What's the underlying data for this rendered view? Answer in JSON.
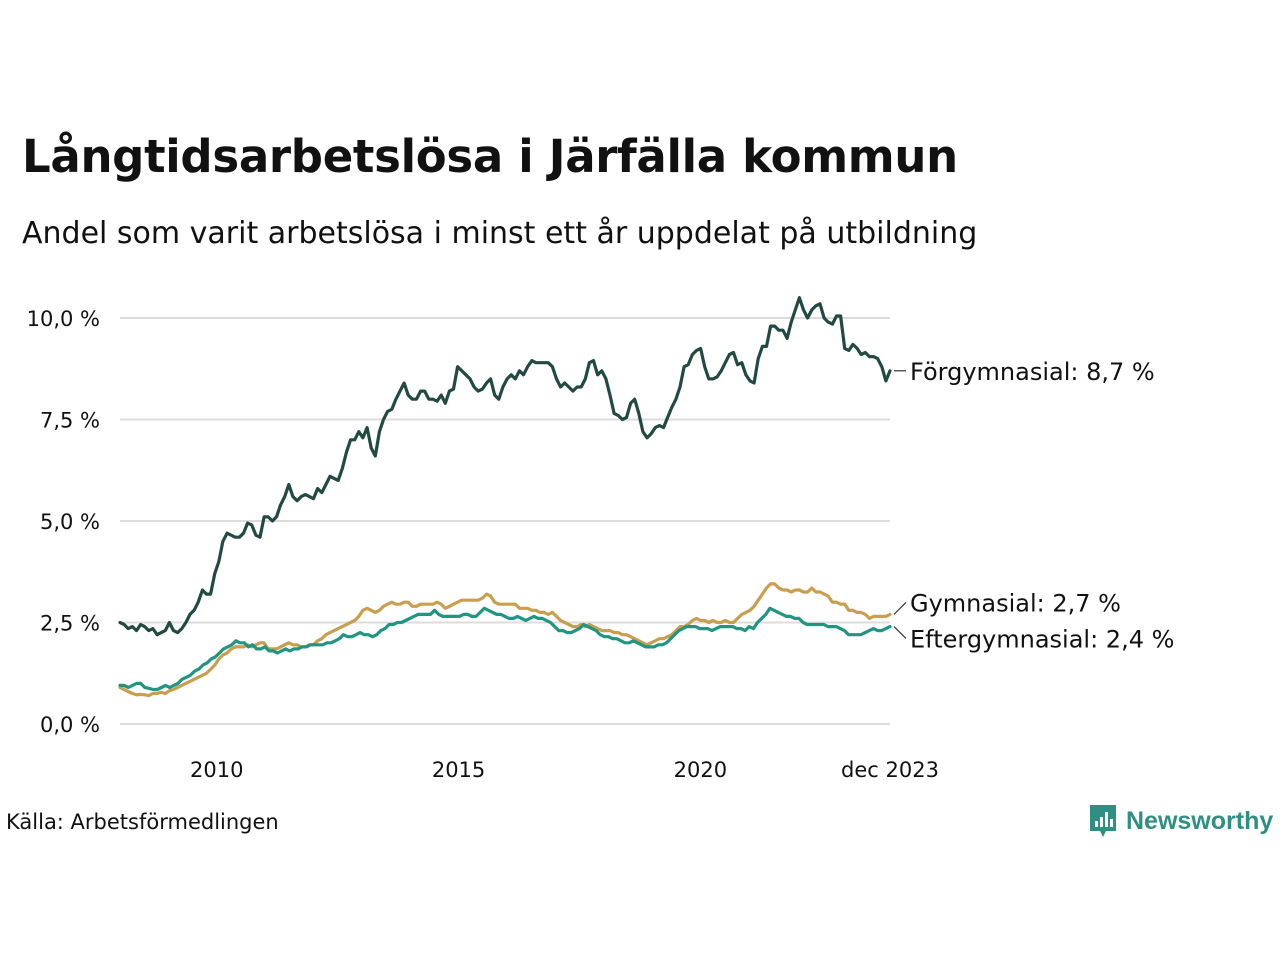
{
  "title": "Långtidsarbetslösa i Järfälla kommun",
  "subtitle": "Andel som varit arbetslösa i minst ett år uppdelat på utbildning",
  "source": "Källa: Arbetsförmedlingen",
  "brand": {
    "name": "Newsworthy",
    "color": "#2f8f83"
  },
  "chart_data": {
    "type": "line",
    "x_start": 2008.0,
    "x_end": 2023.92,
    "x_ticks": [
      {
        "value": 2010.0,
        "label": "2010"
      },
      {
        "value": 2015.0,
        "label": "2015"
      },
      {
        "value": 2020.0,
        "label": "2020"
      },
      {
        "value": 2023.92,
        "label": "dec 2023"
      }
    ],
    "y_ticks": [
      {
        "value": 0,
        "label": "0,0 %"
      },
      {
        "value": 2.5,
        "label": "2,5 %"
      },
      {
        "value": 5,
        "label": "5,0 %"
      },
      {
        "value": 7.5,
        "label": "7,5 %"
      },
      {
        "value": 10,
        "label": "10,0 %"
      }
    ],
    "ylim": [
      0,
      10.5
    ],
    "grid": true,
    "series": [
      {
        "name": "Förgymnasial",
        "label": "Förgymnasial: 8,7 %",
        "color": "#234a42",
        "values": [
          2.5,
          2.45,
          2.35,
          2.4,
          2.3,
          2.45,
          2.4,
          2.3,
          2.35,
          2.2,
          2.25,
          2.3,
          2.5,
          2.3,
          2.25,
          2.35,
          2.5,
          2.7,
          2.8,
          3.0,
          3.3,
          3.2,
          3.2,
          3.7,
          4.0,
          4.5,
          4.7,
          4.65,
          4.6,
          4.6,
          4.7,
          4.95,
          4.9,
          4.65,
          4.6,
          5.1,
          5.1,
          5.0,
          5.1,
          5.4,
          5.6,
          5.9,
          5.6,
          5.5,
          5.6,
          5.65,
          5.6,
          5.55,
          5.8,
          5.7,
          5.9,
          6.1,
          6.05,
          6.0,
          6.3,
          6.7,
          7.0,
          7.0,
          7.2,
          7.05,
          7.3,
          6.8,
          6.6,
          7.2,
          7.5,
          7.7,
          7.75,
          8.0,
          8.2,
          8.4,
          8.1,
          8.0,
          8.0,
          8.2,
          8.2,
          8.0,
          8.0,
          7.95,
          8.1,
          7.9,
          8.2,
          8.25,
          8.8,
          8.7,
          8.6,
          8.5,
          8.3,
          8.2,
          8.25,
          8.4,
          8.5,
          8.1,
          8.0,
          8.3,
          8.5,
          8.6,
          8.5,
          8.7,
          8.6,
          8.8,
          8.95,
          8.9,
          8.9,
          8.9,
          8.9,
          8.8,
          8.5,
          8.3,
          8.4,
          8.3,
          8.2,
          8.3,
          8.3,
          8.5,
          8.9,
          8.95,
          8.6,
          8.7,
          8.5,
          8.1,
          7.65,
          7.6,
          7.5,
          7.55,
          7.9,
          8.0,
          7.65,
          7.2,
          7.05,
          7.15,
          7.3,
          7.35,
          7.3,
          7.55,
          7.8,
          8.0,
          8.3,
          8.8,
          8.85,
          9.1,
          9.2,
          9.25,
          8.8,
          8.5,
          8.5,
          8.55,
          8.7,
          8.9,
          9.1,
          9.15,
          8.85,
          8.9,
          8.6,
          8.45,
          8.4,
          9.0,
          9.3,
          9.3,
          9.8,
          9.8,
          9.7,
          9.7,
          9.5,
          9.9,
          10.2,
          10.5,
          10.2,
          10.0,
          10.2,
          10.3,
          10.35,
          10.0,
          9.9,
          9.85,
          10.05,
          10.05,
          9.25,
          9.2,
          9.35,
          9.25,
          9.1,
          9.15,
          9.05,
          9.05,
          9.0,
          8.8,
          8.45,
          8.7
        ]
      },
      {
        "name": "Gymnasial",
        "label": "Gymnasial: 2,7 %",
        "color": "#c99e4f",
        "values": [
          0.9,
          0.85,
          0.8,
          0.75,
          0.72,
          0.73,
          0.72,
          0.7,
          0.75,
          0.75,
          0.78,
          0.75,
          0.82,
          0.85,
          0.9,
          0.95,
          1.0,
          1.05,
          1.1,
          1.15,
          1.2,
          1.25,
          1.35,
          1.45,
          1.6,
          1.7,
          1.75,
          1.85,
          1.9,
          1.9,
          1.9,
          1.95,
          1.9,
          1.95,
          2.0,
          2.0,
          1.85,
          1.85,
          1.85,
          1.9,
          1.95,
          2.0,
          1.95,
          1.95,
          1.9,
          1.9,
          1.95,
          1.95,
          2.05,
          2.1,
          2.2,
          2.25,
          2.3,
          2.35,
          2.4,
          2.45,
          2.5,
          2.55,
          2.65,
          2.8,
          2.85,
          2.8,
          2.75,
          2.8,
          2.9,
          2.95,
          3.0,
          2.95,
          2.95,
          3.0,
          3.0,
          2.9,
          2.9,
          2.95,
          2.95,
          2.95,
          2.95,
          3.0,
          2.95,
          2.85,
          2.9,
          2.95,
          3.0,
          3.05,
          3.05,
          3.05,
          3.05,
          3.05,
          3.1,
          3.2,
          3.15,
          3.0,
          2.95,
          2.95,
          2.95,
          2.95,
          2.95,
          2.85,
          2.85,
          2.85,
          2.8,
          2.8,
          2.75,
          2.75,
          2.7,
          2.75,
          2.65,
          2.55,
          2.5,
          2.45,
          2.4,
          2.4,
          2.45,
          2.4,
          2.45,
          2.4,
          2.35,
          2.3,
          2.3,
          2.3,
          2.25,
          2.25,
          2.2,
          2.2,
          2.15,
          2.1,
          2.05,
          2.0,
          1.95,
          2.0,
          2.05,
          2.1,
          2.1,
          2.15,
          2.2,
          2.3,
          2.4,
          2.4,
          2.45,
          2.55,
          2.6,
          2.55,
          2.55,
          2.5,
          2.55,
          2.5,
          2.5,
          2.55,
          2.5,
          2.5,
          2.6,
          2.7,
          2.75,
          2.8,
          2.9,
          3.05,
          3.2,
          3.35,
          3.45,
          3.45,
          3.35,
          3.3,
          3.3,
          3.25,
          3.3,
          3.3,
          3.25,
          3.25,
          3.35,
          3.25,
          3.25,
          3.2,
          3.15,
          3.0,
          3.0,
          2.95,
          2.95,
          2.8,
          2.8,
          2.75,
          2.75,
          2.7,
          2.6,
          2.65,
          2.65,
          2.65,
          2.65,
          2.7
        ]
      },
      {
        "name": "Eftergymnasial",
        "label": "Eftergymnasial: 2,4 %",
        "color": "#1f9582",
        "values": [
          0.95,
          0.95,
          0.9,
          0.95,
          1.0,
          1.0,
          0.9,
          0.88,
          0.85,
          0.85,
          0.9,
          0.95,
          0.9,
          0.95,
          1.0,
          1.1,
          1.15,
          1.2,
          1.3,
          1.35,
          1.45,
          1.5,
          1.6,
          1.65,
          1.75,
          1.85,
          1.9,
          1.95,
          2.05,
          2.0,
          2.0,
          1.9,
          1.95,
          1.85,
          1.85,
          1.9,
          1.8,
          1.8,
          1.75,
          1.8,
          1.85,
          1.8,
          1.85,
          1.85,
          1.9,
          1.9,
          1.95,
          1.95,
          1.95,
          1.95,
          2.0,
          2.0,
          2.05,
          2.1,
          2.2,
          2.15,
          2.15,
          2.2,
          2.25,
          2.2,
          2.2,
          2.15,
          2.2,
          2.3,
          2.35,
          2.45,
          2.45,
          2.5,
          2.5,
          2.55,
          2.6,
          2.65,
          2.7,
          2.7,
          2.7,
          2.7,
          2.8,
          2.7,
          2.65,
          2.65,
          2.65,
          2.65,
          2.65,
          2.7,
          2.7,
          2.65,
          2.65,
          2.75,
          2.85,
          2.8,
          2.75,
          2.7,
          2.7,
          2.65,
          2.6,
          2.6,
          2.65,
          2.6,
          2.55,
          2.6,
          2.65,
          2.6,
          2.6,
          2.55,
          2.5,
          2.4,
          2.3,
          2.3,
          2.25,
          2.25,
          2.3,
          2.35,
          2.45,
          2.4,
          2.35,
          2.3,
          2.2,
          2.15,
          2.15,
          2.1,
          2.1,
          2.05,
          2.0,
          2.0,
          2.05,
          2.0,
          1.95,
          1.9,
          1.9,
          1.9,
          1.95,
          1.95,
          2.0,
          2.1,
          2.2,
          2.3,
          2.35,
          2.4,
          2.4,
          2.4,
          2.35,
          2.35,
          2.35,
          2.3,
          2.35,
          2.4,
          2.4,
          2.4,
          2.4,
          2.35,
          2.35,
          2.3,
          2.4,
          2.35,
          2.5,
          2.6,
          2.7,
          2.85,
          2.8,
          2.75,
          2.7,
          2.65,
          2.65,
          2.6,
          2.6,
          2.5,
          2.45,
          2.45,
          2.45,
          2.45,
          2.45,
          2.4,
          2.4,
          2.4,
          2.35,
          2.3,
          2.2,
          2.2,
          2.2,
          2.2,
          2.25,
          2.3,
          2.35,
          2.3,
          2.3,
          2.35,
          2.4
        ]
      }
    ]
  }
}
